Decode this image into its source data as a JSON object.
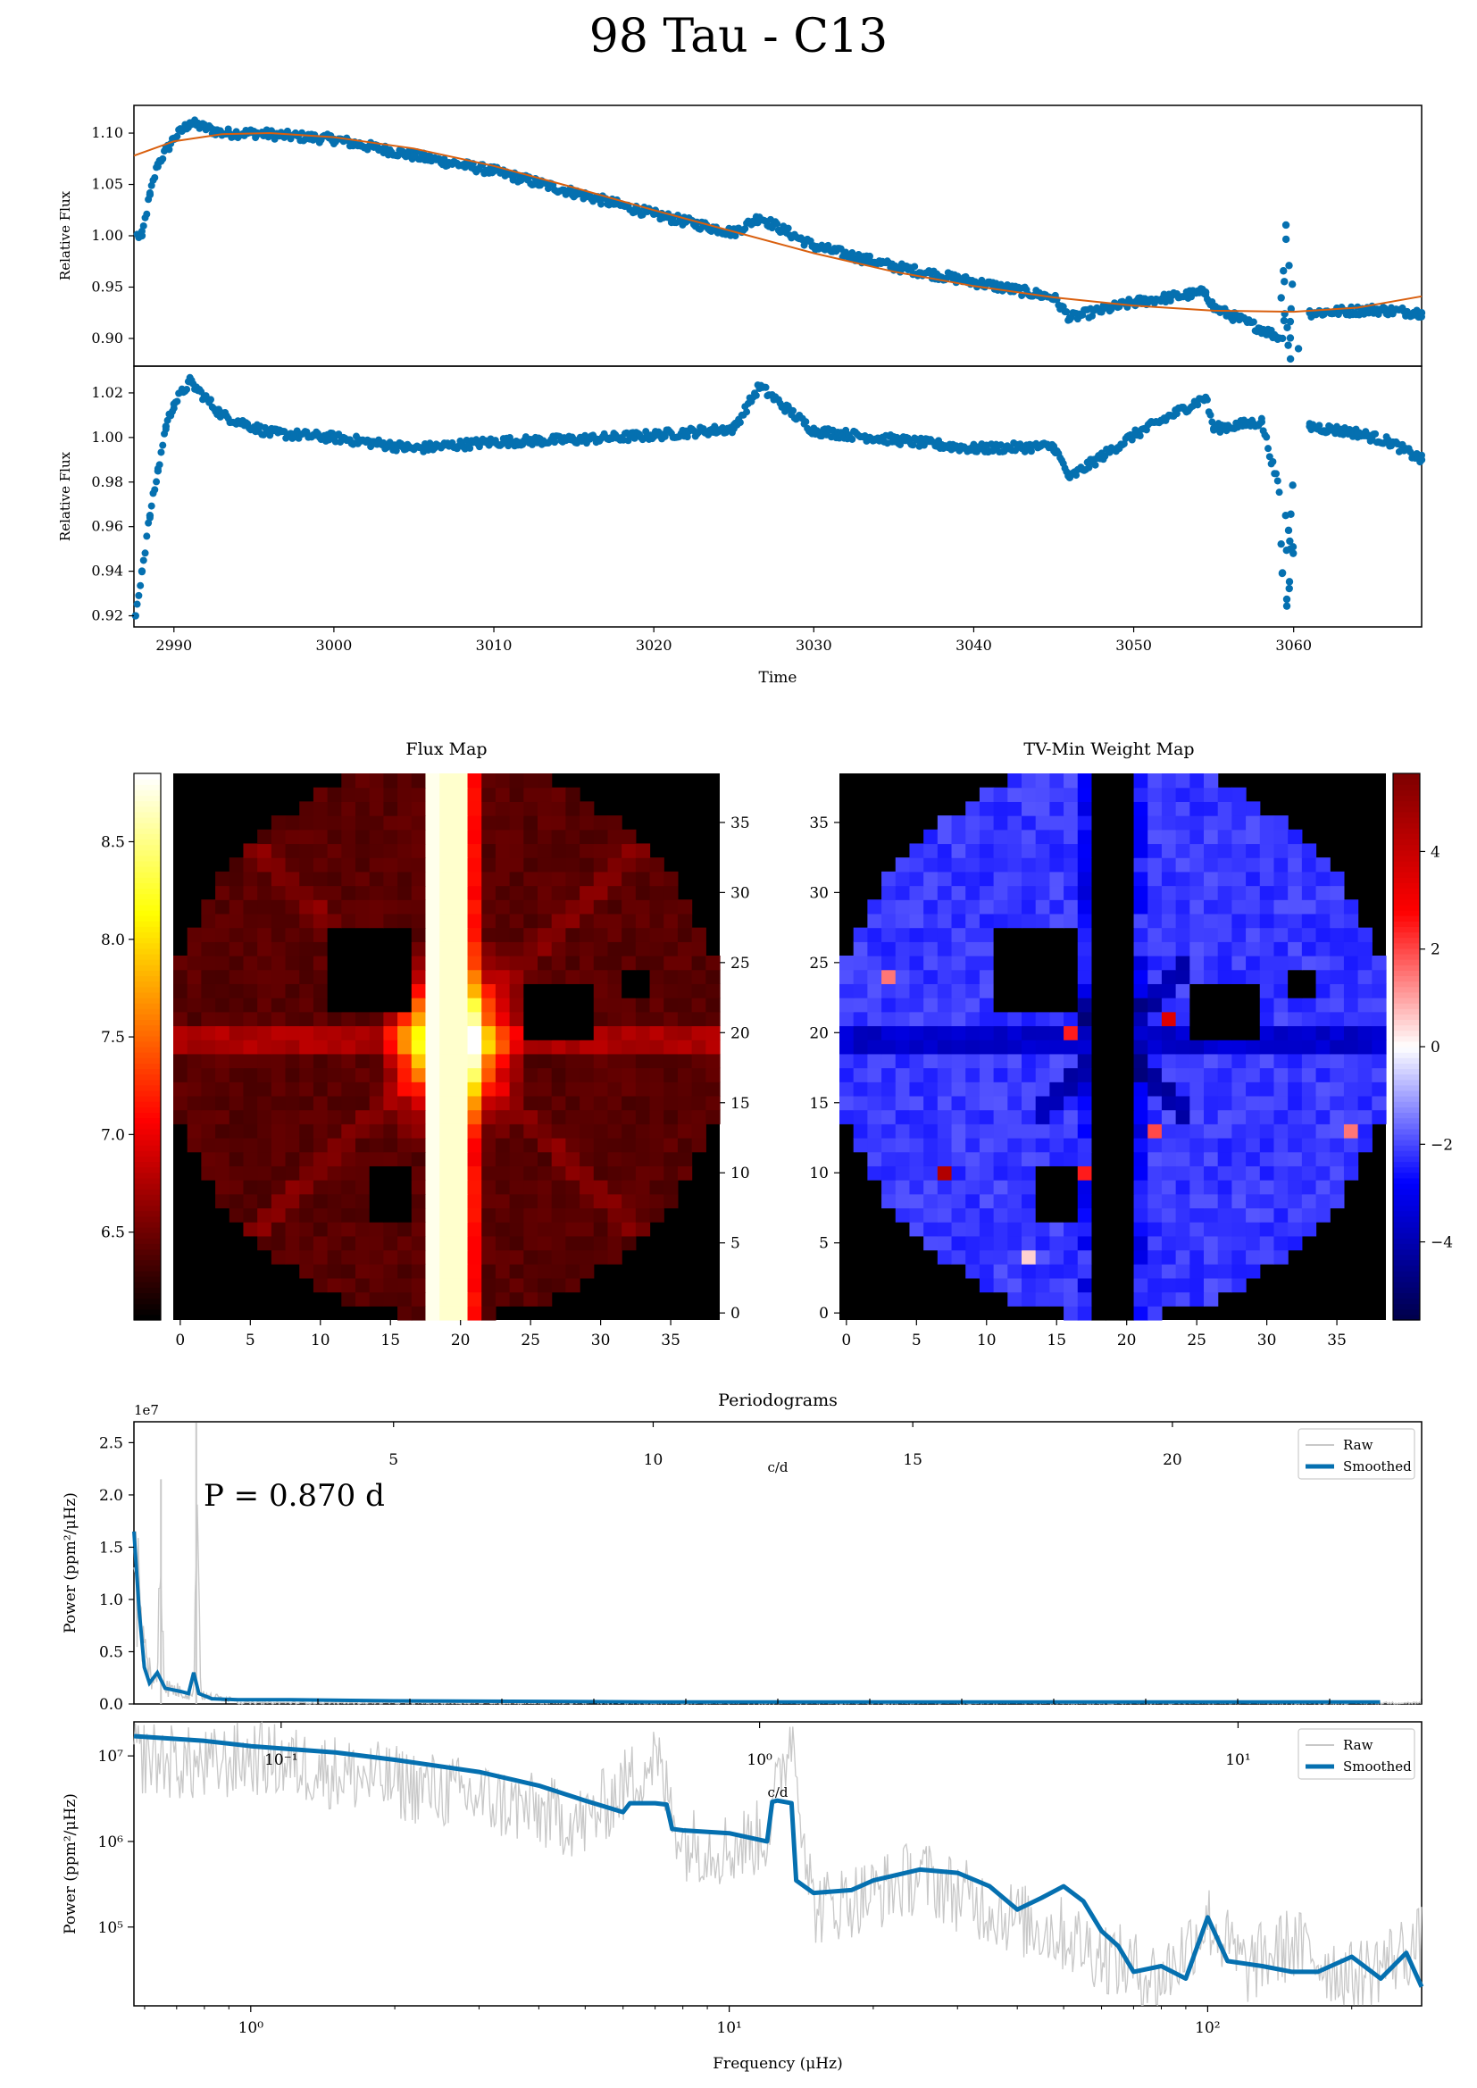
{
  "title": "98 Tau - C13",
  "colors": {
    "data": "#0570b0",
    "model": "#d95f0e",
    "raw": "#c8c8c8",
    "smooth": "#0570b0",
    "frame": "#000000"
  },
  "chart_data": [
    {
      "id": "lightcurve-raw",
      "type": "scatter",
      "xlabel": "",
      "ylabel": "Relative Flux",
      "xlim": [
        2987.5,
        3068
      ],
      "ylim": [
        0.873,
        1.127
      ],
      "yticks": [
        "0.90",
        "0.95",
        "1.00",
        "1.05",
        "1.10"
      ],
      "series": [
        {
          "kind": "points",
          "x": [
            2988,
            2988.5,
            2989,
            2990,
            2991,
            2993,
            2995,
            3000,
            3005,
            3010,
            3015,
            3020,
            3025,
            3026.6,
            3030,
            3035,
            3040,
            3045,
            3046,
            3050,
            3054.5,
            3055,
            3059.3,
            3059.8,
            3060.3,
            3061,
            3065,
            3068
          ],
          "y": [
            1.0,
            1.04,
            1.07,
            1.095,
            1.11,
            1.1,
            1.1,
            1.094,
            1.078,
            1.063,
            1.042,
            1.021,
            1.003,
            1.018,
            0.99,
            0.97,
            0.955,
            0.94,
            0.92,
            0.935,
            0.945,
            0.93,
            0.9,
            0.88,
            0.89,
            0.925,
            0.928,
            0.925
          ]
        },
        {
          "kind": "line",
          "x": [
            2987.5,
            2990,
            2993,
            2996,
            3000,
            3005,
            3010,
            3015,
            3020,
            3025,
            3030,
            3035,
            3040,
            3045,
            3050,
            3055,
            3060,
            3064,
            3068
          ],
          "y": [
            1.078,
            1.092,
            1.099,
            1.1,
            1.096,
            1.085,
            1.068,
            1.047,
            1.025,
            1.004,
            0.983,
            0.965,
            0.951,
            0.94,
            0.932,
            0.927,
            0.926,
            0.93,
            0.941
          ]
        }
      ]
    },
    {
      "id": "lightcurve-detrended",
      "type": "scatter",
      "xlabel": "Time",
      "ylabel": "Relative Flux",
      "xlim": [
        2987.5,
        3068
      ],
      "ylim": [
        0.915,
        1.032
      ],
      "xticks": [
        "2990",
        "3000",
        "3010",
        "3020",
        "3030",
        "3040",
        "3050",
        "3060"
      ],
      "yticks": [
        "0.92",
        "0.94",
        "0.96",
        "0.98",
        "1.00",
        "1.02"
      ],
      "series": [
        {
          "kind": "points",
          "x": [
            2987.6,
            2988,
            2988.5,
            2989,
            2989.5,
            2990,
            2991,
            2993,
            2996,
            3000,
            3005,
            3010,
            3015,
            3020,
            3025,
            3026.6,
            3030,
            3035,
            3040,
            3045,
            3046,
            3050,
            3054.5,
            3055,
            3058,
            3059.5,
            3059.8,
            3061,
            3064,
            3066,
            3068
          ],
          "y": [
            0.92,
            0.94,
            0.965,
            0.985,
            1.005,
            1.015,
            1.025,
            1.01,
            1.002,
            1.0,
            0.995,
            0.998,
            0.999,
            1.001,
            1.004,
            1.023,
            1.003,
            0.999,
            0.995,
            0.996,
            0.982,
            1.001,
            1.018,
            1.004,
            1.007,
            0.965,
            0.95,
            1.005,
            1.002,
            0.998,
            0.99
          ]
        }
      ]
    },
    {
      "id": "flux-map",
      "type": "heatmap",
      "title": "Flux Map",
      "colorbar_ticks": [
        "6.5",
        "7.0",
        "7.5",
        "8.0",
        "8.5"
      ],
      "colorbar_range": [
        6.05,
        8.85
      ],
      "xticks": [
        "0",
        "5",
        "10",
        "15",
        "20",
        "25",
        "30",
        "35"
      ],
      "yticks": [
        "0",
        "5",
        "10",
        "15",
        "20",
        "25",
        "30",
        "35"
      ],
      "grid_size": [
        39,
        39
      ],
      "saturated_columns": [
        18,
        19,
        20
      ],
      "masked_regions": [
        {
          "x": [
            11,
            16
          ],
          "y": [
            22,
            27
          ]
        },
        {
          "x": [
            25,
            29
          ],
          "y": [
            20,
            23
          ]
        },
        {
          "x": [
            32,
            33
          ],
          "y": [
            23,
            24
          ]
        },
        {
          "x": [
            14,
            16
          ],
          "y": [
            7,
            10
          ]
        }
      ]
    },
    {
      "id": "weight-map",
      "type": "heatmap",
      "title": "TV-Min Weight Map",
      "colorbar_ticks": [
        "4",
        "2",
        "0",
        "−2",
        "−4"
      ],
      "colorbar_range": [
        -5.6,
        5.6
      ],
      "xticks": [
        "0",
        "5",
        "10",
        "15",
        "20",
        "25",
        "30",
        "35"
      ],
      "yticks": [
        "0",
        "5",
        "10",
        "15",
        "20",
        "25",
        "30",
        "35"
      ],
      "grid_size": [
        39,
        39
      ],
      "zero_columns": [
        18,
        19,
        20
      ],
      "highlights": [
        {
          "x": 7,
          "y": 10,
          "v": 4.5
        },
        {
          "x": 3,
          "y": 24,
          "v": 1.5
        },
        {
          "x": 16,
          "y": 20,
          "v": 2.5
        },
        {
          "x": 17,
          "y": 10,
          "v": 2.5
        },
        {
          "x": 23,
          "y": 21,
          "v": 3.5
        },
        {
          "x": 36,
          "y": 13,
          "v": 1.5
        },
        {
          "x": 22,
          "y": 13,
          "v": 2
        },
        {
          "x": 13,
          "y": 4,
          "v": 0.5
        }
      ]
    },
    {
      "id": "periodogram-linear",
      "type": "line",
      "title": "Periodograms",
      "ylabel": "Power (ppm²/μHz)",
      "y_offset_label": "1e7",
      "yticks": [
        "0.0",
        "0.5",
        "1.0",
        "1.5",
        "2.0",
        "2.5"
      ],
      "ylim": [
        0,
        2.7
      ],
      "top_axis_label": "c/d",
      "top_ticks": [
        "5",
        "10",
        "15",
        "20"
      ],
      "annotation": "P = 0.870 d",
      "legend": [
        "Raw",
        "Smoothed"
      ],
      "legend_position": "top-right",
      "series": [
        {
          "name": "Raw",
          "x": [
            0.0,
            0.1,
            0.2,
            0.3,
            0.45,
            0.5,
            0.6,
            0.9,
            1.15,
            1.2,
            1.3,
            1.5,
            2.0,
            3.0,
            5.0,
            10,
            15,
            20,
            24
          ],
          "y": [
            2.1,
            1.2,
            0.6,
            0.4,
            0.2,
            2.1,
            0.2,
            0.15,
            0.1,
            2.7,
            0.1,
            0.08,
            0.06,
            0.04,
            0.02,
            0.01,
            0.01,
            0.01,
            0.01
          ]
        },
        {
          "name": "Smoothed",
          "x": [
            0.0,
            0.1,
            0.2,
            0.3,
            0.45,
            0.6,
            0.9,
            1.05,
            1.15,
            1.25,
            1.5,
            2.0,
            3.0,
            5.0,
            10,
            15,
            20,
            24
          ],
          "y": [
            1.65,
            0.9,
            0.35,
            0.2,
            0.3,
            0.15,
            0.12,
            0.1,
            0.3,
            0.1,
            0.05,
            0.04,
            0.04,
            0.03,
            0.02,
            0.02,
            0.02,
            0.02
          ]
        }
      ]
    },
    {
      "id": "periodogram-log",
      "type": "line",
      "xlabel": "Frequency (μHz)",
      "ylabel": "Power (ppm²/μHz)",
      "x_log": true,
      "y_log": true,
      "xlim": [
        0.57,
        280
      ],
      "ylim": [
        12000,
        25000000
      ],
      "xticks": [
        "10⁰",
        "10¹",
        "10²"
      ],
      "yticks": [
        "10⁵",
        "10⁶",
        "10⁷"
      ],
      "top_axis_label": "c/d",
      "top_ticks": [
        "10⁻¹",
        "10⁰",
        "10¹"
      ],
      "legend": [
        "Raw",
        "Smoothed"
      ],
      "legend_position": "top-right",
      "series": [
        {
          "name": "Raw",
          "x": [
            0.6,
            0.8,
            1.0,
            1.5,
            2,
            3,
            5,
            7,
            8,
            10,
            12,
            13.5,
            15,
            20,
            25,
            30,
            40,
            50,
            60,
            70,
            80,
            100,
            120,
            150,
            200,
            280
          ],
          "y": [
            12000000,
            9000000,
            12000000,
            8000000,
            6000000,
            4000000,
            2000000,
            12000000,
            1200000,
            1000000,
            1500000,
            25000000,
            200000,
            300000,
            500000,
            300000,
            150000,
            100000,
            60000,
            40000,
            30000,
            150000,
            40000,
            80000,
            30000,
            80000
          ]
        },
        {
          "name": "Smoothed",
          "x": [
            0.57,
            0.8,
            1.0,
            1.5,
            2,
            3,
            4,
            5,
            6,
            6.2,
            7,
            7.4,
            7.6,
            8,
            10,
            12,
            12.3,
            12.6,
            13.5,
            13.8,
            15,
            18,
            20,
            25,
            30,
            35,
            40,
            45,
            50,
            55,
            60,
            65,
            70,
            80,
            90,
            100,
            110,
            130,
            150,
            170,
            200,
            230,
            260,
            280
          ],
          "y": [
            17000000,
            15000000,
            13000000,
            11000000,
            9000000,
            6500000,
            4500000,
            3000000,
            2200000,
            2800000,
            2800000,
            2700000,
            1400000,
            1350000,
            1250000,
            1000000,
            2900000,
            3000000,
            2800000,
            350000,
            250000,
            270000,
            350000,
            470000,
            430000,
            300000,
            160000,
            220000,
            300000,
            200000,
            90000,
            60000,
            30000,
            35000,
            25000,
            130000,
            40000,
            35000,
            30000,
            30000,
            45000,
            25000,
            50000,
            20000
          ]
        }
      ]
    }
  ]
}
